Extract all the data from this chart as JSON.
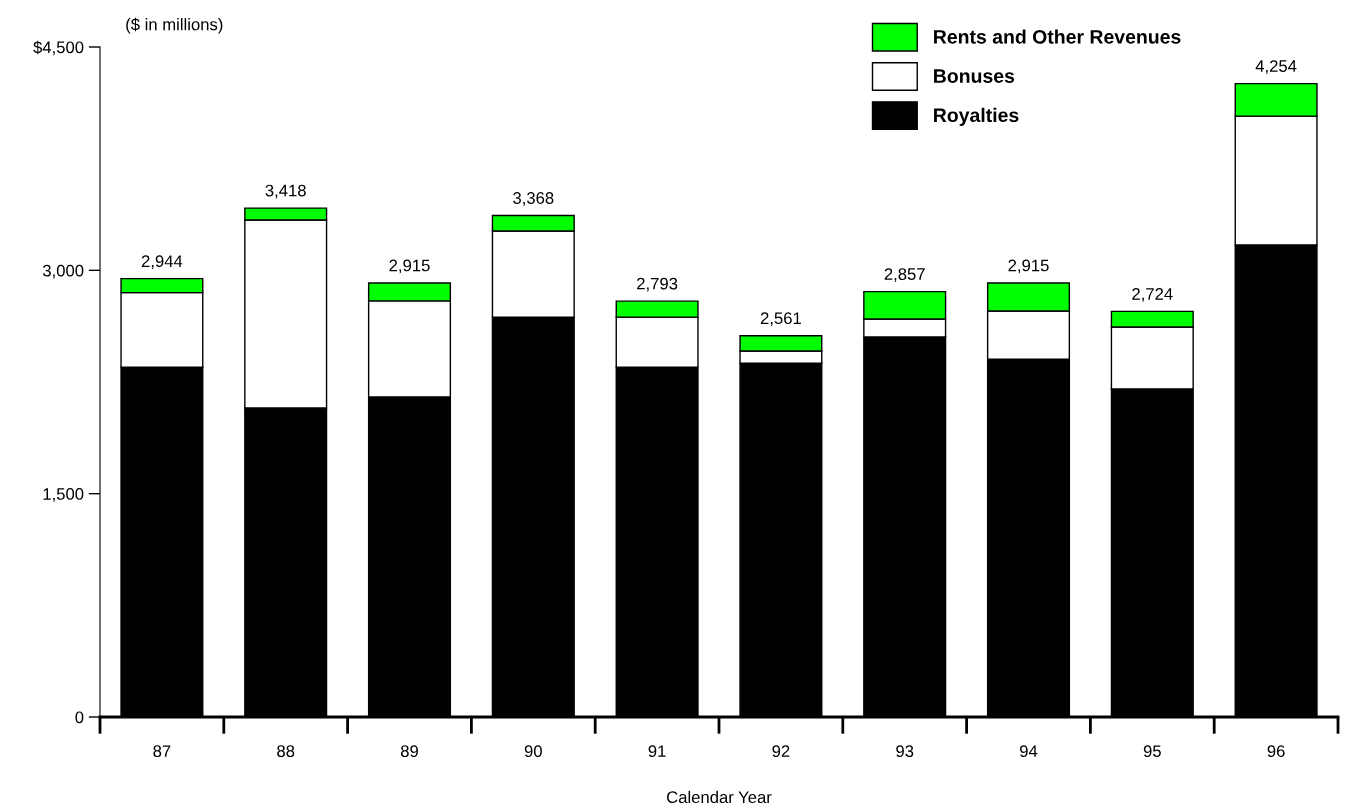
{
  "chart_data": {
    "type": "bar",
    "stacked": true,
    "xlabel": "Calendar Year",
    "ylabel": "($ in millions)",
    "categories": [
      "87",
      "88",
      "89",
      "90",
      "91",
      "92",
      "93",
      "94",
      "95",
      "96"
    ],
    "series": [
      {
        "name": "Royalties",
        "color": "#000000",
        "values": [
          2350,
          2075,
          2150,
          2686,
          2350,
          2377,
          2552,
          2404,
          2203,
          3170
        ]
      },
      {
        "name": "Bonuses",
        "color": "#ffffff",
        "values": [
          500,
          1263,
          645,
          578,
          336,
          81,
          121,
          323,
          416,
          866
        ]
      },
      {
        "name": "Rents and Other Revenues",
        "color": "#00ff00",
        "values": [
          94,
          80,
          120,
          104,
          107,
          103,
          184,
          188,
          105,
          218
        ]
      }
    ],
    "totals": [
      "2,944",
      "3,418",
      "2,915",
      "3,368",
      "2,793",
      "2,561",
      "2,857",
      "2,915",
      "2,724",
      "4,254"
    ],
    "ylim": [
      0,
      4500
    ],
    "yticks": [
      0,
      {
        "value": 1500,
        "label": "1,500"
      },
      {
        "value": 3000,
        "label": "3,000"
      },
      {
        "value": 4500,
        "label": "$4,500"
      }
    ],
    "grid": false,
    "legend": "top right"
  }
}
